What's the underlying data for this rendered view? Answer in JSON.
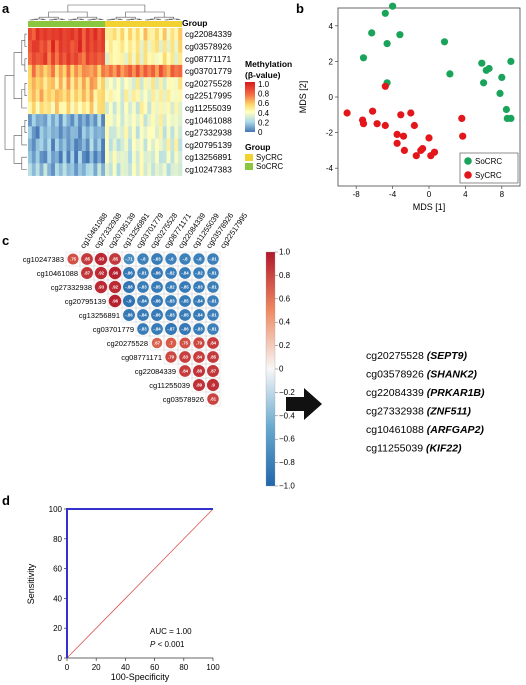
{
  "panels": {
    "a": "a",
    "b": "b",
    "c": "c",
    "d": "d"
  },
  "colors": {
    "socrc": "#1aa35a",
    "sycrc": "#e3161b",
    "group_sy": "#f2d230",
    "group_so": "#8cc63f",
    "roc_curve": "#3333cc",
    "diagonal": "#d9534f"
  },
  "chart_data": [
    {
      "panel": "a",
      "type": "heatmap",
      "group_header": "Group",
      "rows": [
        "cg22084339",
        "cg03578926",
        "cg08771171",
        "cg03701779",
        "cg20275528",
        "cg22517995",
        "cg11255039",
        "cg10461088",
        "cg27332938",
        "cg20795139",
        "cg13256891",
        "cg10247383"
      ],
      "n_samples": 40,
      "legend_title_lines": [
        "Methylation",
        "(β-value)"
      ],
      "legend_ticks": [
        "1.0",
        "0.8",
        "0.6",
        "0.4",
        "0.2",
        "0"
      ],
      "group_legend_title": "Group",
      "group_legend": [
        "SyCRC",
        "SoCRC"
      ],
      "block_means": [
        [
          0.95,
          0.55
        ],
        [
          0.92,
          0.5
        ],
        [
          0.88,
          0.48
        ],
        [
          0.7,
          0.8
        ],
        [
          0.62,
          0.45
        ],
        [
          0.6,
          0.45
        ],
        [
          0.55,
          0.42
        ],
        [
          0.18,
          0.42
        ],
        [
          0.18,
          0.4
        ],
        [
          0.18,
          0.4
        ],
        [
          0.15,
          0.38
        ],
        [
          0.22,
          0.38
        ]
      ]
    },
    {
      "panel": "b",
      "type": "scatter",
      "xlabel": "MDS [1]",
      "ylabel": "MDS [2]",
      "xlim": [
        -10,
        10
      ],
      "ylim": [
        -5,
        5
      ],
      "xticks": [
        -8,
        -4,
        0,
        4,
        8
      ],
      "yticks": [
        -4,
        -2,
        0,
        2,
        4
      ],
      "legend_position": "bottom-right",
      "series": [
        {
          "name": "SoCRC",
          "points": [
            [
              -4,
              5.1
            ],
            [
              -4.8,
              4.7
            ],
            [
              -3.2,
              3.5
            ],
            [
              -6.3,
              3.6
            ],
            [
              -4.6,
              3.0
            ],
            [
              -7.2,
              2.2
            ],
            [
              1.7,
              3.1
            ],
            [
              2.3,
              1.3
            ],
            [
              -4.6,
              0.8
            ],
            [
              5.8,
              1.9
            ],
            [
              6.3,
              1.5
            ],
            [
              6.6,
              1.6
            ],
            [
              8.0,
              1.1
            ],
            [
              6.0,
              0.8
            ],
            [
              9.0,
              2.0
            ],
            [
              7.8,
              0.2
            ],
            [
              8.5,
              -0.7
            ],
            [
              8.6,
              -1.2
            ],
            [
              9.0,
              -1.2
            ]
          ]
        },
        {
          "name": "SyCRC",
          "points": [
            [
              -4.8,
              0.6
            ],
            [
              -7.2,
              -1.5
            ],
            [
              -7.3,
              -1.3
            ],
            [
              -6.2,
              -0.8
            ],
            [
              -5.7,
              -1.5
            ],
            [
              -9.0,
              -0.9
            ],
            [
              -4.8,
              -1.6
            ],
            [
              -3.1,
              -1.0
            ],
            [
              -2.0,
              -0.9
            ],
            [
              -1.6,
              -1.6
            ],
            [
              -3.5,
              -2.6
            ],
            [
              -2.8,
              -2.2
            ],
            [
              -3.5,
              -2.1
            ],
            [
              -2.7,
              -3.0
            ],
            [
              0,
              -2.3
            ],
            [
              -0.7,
              -2.9
            ],
            [
              0.2,
              -3.3
            ],
            [
              0.6,
              -3.1
            ],
            [
              -1.4,
              -3.3
            ],
            [
              -0.9,
              -3.0
            ],
            [
              3.6,
              -1.2
            ],
            [
              3.7,
              -2.2
            ]
          ]
        }
      ]
    },
    {
      "panel": "c",
      "type": "heatmap",
      "variables": [
        "cg10247383",
        "cg10461088",
        "cg27332938",
        "cg20795139",
        "cg13256891",
        "cg03701779",
        "cg20275528",
        "cg08771171",
        "cg22084339",
        "cg11255039",
        "cg03578926",
        "cg22517995"
      ],
      "colorbar_ticks": [
        "1.0",
        "0.8",
        "0.6",
        "0.4",
        "0.2",
        "0",
        "−0.2",
        "−0.4",
        "−0.6",
        "−0.8",
        "−1.0"
      ],
      "upper_triangle": [
        [
          0.75,
          0.85,
          0.93,
          0.85,
          -0.71,
          -0.8,
          -0.83,
          -0.8,
          -0.8,
          -0.8,
          -0.81
        ],
        [
          0.87,
          0.92,
          0.96,
          -0.86,
          -0.81,
          -0.86,
          -0.82,
          -0.84,
          -0.82,
          -0.81
        ],
        [
          0.93,
          0.92,
          -0.88,
          -0.83,
          -0.85,
          -0.82,
          -0.85,
          -0.83,
          -0.81
        ],
        [
          0.96,
          -0.9,
          -0.84,
          -0.86,
          -0.83,
          -0.85,
          -0.84,
          -0.81
        ],
        [
          -0.86,
          -0.84,
          -0.86,
          -0.83,
          -0.85,
          -0.84,
          -0.81
        ],
        [
          -0.83,
          -0.84,
          -0.87,
          -0.86,
          -0.83,
          -0.81
        ],
        [
          0.67,
          0.7,
          0.75,
          0.79,
          0.84
        ],
        [
          0.79,
          0.83,
          0.84,
          0.85
        ],
        [
          0.84,
          0.88,
          0.87
        ],
        [
          0.89,
          0.9
        ],
        [
          0.81
        ]
      ]
    },
    {
      "panel": "d",
      "type": "line",
      "xlabel": "100-Specificity",
      "ylabel": "Sensitivity",
      "xlim": [
        0,
        100
      ],
      "ylim": [
        0,
        100
      ],
      "xticks": [
        0,
        20,
        40,
        60,
        80,
        100
      ],
      "yticks": [
        0,
        20,
        40,
        60,
        80,
        100
      ],
      "roc_points": [
        [
          0,
          0
        ],
        [
          0,
          100
        ],
        [
          100,
          100
        ]
      ],
      "diagonal": [
        [
          0,
          0
        ],
        [
          100,
          100
        ]
      ],
      "auc_text": "AUC = 1.00",
      "p_text_prefix": "P",
      "p_text_suffix": " < 0.001"
    }
  ],
  "gene_list": [
    {
      "probe": "cg20275528",
      "gene": "(SEPT9)"
    },
    {
      "probe": "cg03578926",
      "gene": "(SHANK2)"
    },
    {
      "probe": "cg22084339",
      "gene": "(PRKAR1B)"
    },
    {
      "probe": "cg27332938",
      "gene": "(ZNF511)"
    },
    {
      "probe": "cg10461088",
      "gene": "(ARFGAP2)"
    },
    {
      "probe": "cg11255039",
      "gene": "(KIF22)"
    }
  ],
  "arrow_icon": "right-arrow-icon"
}
